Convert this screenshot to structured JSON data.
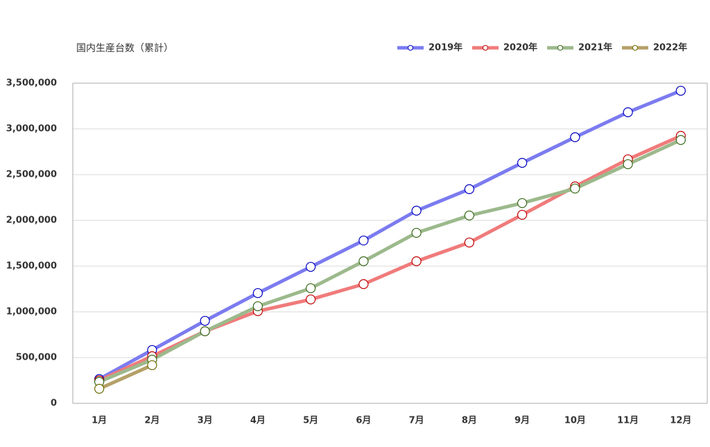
{
  "chart_data": {
    "type": "line",
    "title": "国内生産台数（累計）",
    "categories": [
      "1月",
      "2月",
      "3月",
      "4月",
      "5月",
      "6月",
      "7月",
      "8月",
      "9月",
      "10月",
      "11月",
      "12月"
    ],
    "series": [
      {
        "name": "2019年",
        "color": "#7b7bf0",
        "marker_color": "#0000c0",
        "values": [
          265000,
          583000,
          902000,
          1205000,
          1492000,
          1780000,
          2106000,
          2341000,
          2629000,
          2909000,
          3182000,
          3417000
        ]
      },
      {
        "name": "2020年",
        "color": "#f07b7b",
        "marker_color": "#c00000",
        "values": [
          250000,
          515000,
          788000,
          1008000,
          1136000,
          1303000,
          1553000,
          1758000,
          2061000,
          2371000,
          2667000,
          2924000
        ]
      },
      {
        "name": "2021年",
        "color": "#9cb98c",
        "marker_color": "#3a6a1a",
        "values": [
          235000,
          477000,
          788000,
          1061000,
          1258000,
          1553000,
          1864000,
          2053000,
          2189000,
          2348000,
          2614000,
          2879000
        ]
      },
      {
        "name": "2022年",
        "color": "#b5a068",
        "marker_color": "#6b6b00",
        "values": [
          159000,
          417000,
          null,
          null,
          null,
          null,
          null,
          null,
          null,
          null,
          null,
          null
        ]
      }
    ],
    "ylim": [
      0,
      3500000
    ],
    "yticks": [
      0,
      {
        "value": 500000,
        "label": "500,000"
      },
      {
        "value": 1000000,
        "label": "1,000,000"
      },
      {
        "value": 1500000,
        "label": "1,500,000"
      },
      {
        "value": 2000000,
        "label": "2,000,000"
      },
      {
        "value": 2500000,
        "label": "2,500,000"
      },
      {
        "value": 3000000,
        "label": "3,000,000"
      },
      {
        "value": 3500000,
        "label": "3,500,000"
      }
    ],
    "grid": true,
    "legend": "top-right"
  }
}
